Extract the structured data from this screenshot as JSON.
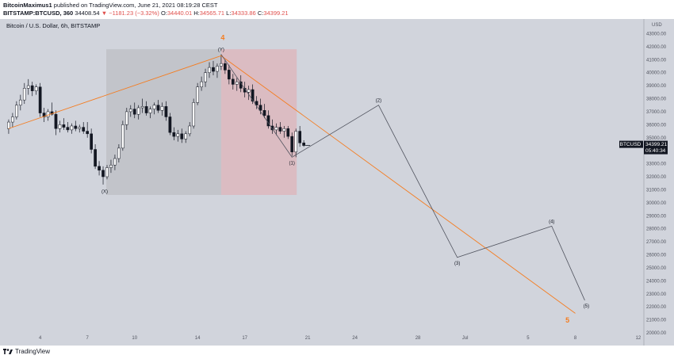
{
  "header": {
    "author": "BitcoinMaximus1",
    "published_text": "published on TradingView.com, June 21, 2021 08:19:28 CEST",
    "symbol": "BITSTAMP:BTCUSD, 360",
    "last": "34408.54",
    "change": "▼ −1181.23 (−3.32%)",
    "o_label": "O:",
    "o_value": "34440.01",
    "h_label": "H:",
    "h_value": "34565.71",
    "l_label": "L:",
    "l_value": "34333.86",
    "c_label": "C:",
    "c_value": "34399.21"
  },
  "chart_title": "Bitcoin / U.S. Dollar, 6h, BITSTAMP",
  "price_tag": {
    "value": "34399.21",
    "countdown": "05:40:34",
    "symbol": "BTCUSD"
  },
  "footer": {
    "brand": "TradingView"
  },
  "colors": {
    "background": "#d1d4dc",
    "up": "#ffffff",
    "down": "#131722",
    "orange": "#f57c1f",
    "grey_box": "#c0c2c8",
    "red_box": "#dcb9bf"
  },
  "chart_data": {
    "type": "candlestick",
    "title": "Bitcoin / U.S. Dollar, 6h, BITSTAMP",
    "y_axis_label": "USD",
    "ylim": [
      20000,
      44000
    ],
    "y_ticks": [
      20000,
      21000,
      22000,
      23000,
      24000,
      25000,
      26000,
      27000,
      28000,
      29000,
      30000,
      31000,
      32000,
      33000,
      34000,
      35000,
      36000,
      37000,
      38000,
      39000,
      40000,
      41000,
      42000,
      43000
    ],
    "y_tick_labels": [
      "20000.00",
      "21000.00",
      "22000.00",
      "23000.00",
      "24000.00",
      "25000.00",
      "26000.00",
      "27000.00",
      "28000.00",
      "29000.00",
      "30000.00",
      "31000.00",
      "32000.00",
      "33000.00",
      "34000.00",
      "35000.00",
      "36000.00",
      "37000.00",
      "38000.00",
      "39000.00",
      "40000.00",
      "41000.00",
      "42000.00",
      "43000.00"
    ],
    "x_tick_labels": [
      {
        "label": "4",
        "day": 4
      },
      {
        "label": "7",
        "day": 7
      },
      {
        "label": "10",
        "day": 10
      },
      {
        "label": "14",
        "day": 14
      },
      {
        "label": "17",
        "day": 17
      },
      {
        "label": "21",
        "day": 21
      },
      {
        "label": "24",
        "day": 24
      },
      {
        "label": "28",
        "day": 28
      },
      {
        "label": "Jul",
        "day": 31
      },
      {
        "label": "5",
        "day": 35
      },
      {
        "label": "8",
        "day": 38
      },
      {
        "label": "12",
        "day": 42
      }
    ],
    "candles_note": "day = calendar day of June 2021 (day 31 = July 1)",
    "candles": [
      {
        "day": 2.0,
        "o": 35700,
        "h": 36400,
        "l": 35300,
        "c": 36200
      },
      {
        "day": 2.25,
        "o": 36200,
        "h": 36900,
        "l": 35800,
        "c": 36600
      },
      {
        "day": 2.5,
        "o": 36600,
        "h": 37800,
        "l": 36400,
        "c": 37500
      },
      {
        "day": 2.75,
        "o": 37500,
        "h": 38300,
        "l": 37100,
        "c": 37900
      },
      {
        "day": 3.0,
        "o": 37900,
        "h": 39200,
        "l": 37600,
        "c": 38800
      },
      {
        "day": 3.25,
        "o": 38800,
        "h": 39500,
        "l": 38300,
        "c": 39000
      },
      {
        "day": 3.5,
        "o": 39000,
        "h": 39300,
        "l": 38200,
        "c": 38600
      },
      {
        "day": 3.75,
        "o": 38600,
        "h": 39100,
        "l": 38300,
        "c": 38900
      },
      {
        "day": 4.0,
        "o": 38900,
        "h": 39200,
        "l": 36600,
        "c": 36900
      },
      {
        "day": 4.25,
        "o": 36900,
        "h": 37300,
        "l": 36200,
        "c": 36600
      },
      {
        "day": 4.5,
        "o": 36600,
        "h": 37200,
        "l": 36300,
        "c": 37000
      },
      {
        "day": 4.75,
        "o": 37000,
        "h": 37700,
        "l": 36700,
        "c": 36800
      },
      {
        "day": 5.0,
        "o": 36800,
        "h": 37100,
        "l": 35200,
        "c": 35700
      },
      {
        "day": 5.25,
        "o": 35700,
        "h": 36300,
        "l": 35400,
        "c": 36000
      },
      {
        "day": 5.5,
        "o": 36000,
        "h": 36500,
        "l": 35600,
        "c": 35800
      },
      {
        "day": 5.75,
        "o": 35800,
        "h": 36200,
        "l": 35400,
        "c": 35600
      },
      {
        "day": 6.0,
        "o": 35600,
        "h": 36100,
        "l": 35300,
        "c": 35900
      },
      {
        "day": 6.25,
        "o": 35900,
        "h": 36300,
        "l": 35500,
        "c": 35700
      },
      {
        "day": 6.5,
        "o": 35700,
        "h": 36000,
        "l": 35400,
        "c": 35800
      },
      {
        "day": 6.75,
        "o": 35800,
        "h": 36200,
        "l": 35300,
        "c": 35500
      },
      {
        "day": 7.0,
        "o": 35500,
        "h": 36200,
        "l": 35000,
        "c": 35300
      },
      {
        "day": 7.25,
        "o": 35300,
        "h": 35700,
        "l": 33800,
        "c": 34100
      },
      {
        "day": 7.5,
        "o": 34100,
        "h": 34500,
        "l": 32600,
        "c": 32800
      },
      {
        "day": 7.75,
        "o": 32800,
        "h": 33200,
        "l": 32100,
        "c": 32500
      },
      {
        "day": 8.0,
        "o": 32500,
        "h": 32800,
        "l": 31400,
        "c": 32000
      },
      {
        "day": 8.25,
        "o": 32000,
        "h": 32900,
        "l": 31800,
        "c": 32700
      },
      {
        "day": 8.5,
        "o": 32700,
        "h": 33300,
        "l": 32300,
        "c": 32900
      },
      {
        "day": 8.75,
        "o": 32900,
        "h": 33700,
        "l": 32500,
        "c": 33400
      },
      {
        "day": 9.0,
        "o": 33400,
        "h": 34500,
        "l": 33100,
        "c": 34200
      },
      {
        "day": 9.25,
        "o": 34200,
        "h": 36300,
        "l": 34000,
        "c": 36000
      },
      {
        "day": 9.5,
        "o": 36000,
        "h": 37300,
        "l": 35600,
        "c": 37000
      },
      {
        "day": 9.75,
        "o": 37000,
        "h": 37500,
        "l": 36600,
        "c": 37200
      },
      {
        "day": 10.0,
        "o": 37200,
        "h": 37700,
        "l": 36500,
        "c": 36800
      },
      {
        "day": 10.25,
        "o": 36800,
        "h": 37500,
        "l": 36400,
        "c": 37300
      },
      {
        "day": 10.5,
        "o": 37300,
        "h": 38000,
        "l": 36900,
        "c": 37400
      },
      {
        "day": 10.75,
        "o": 37400,
        "h": 37800,
        "l": 36700,
        "c": 36900
      },
      {
        "day": 11.0,
        "o": 36900,
        "h": 37400,
        "l": 36500,
        "c": 37200
      },
      {
        "day": 11.25,
        "o": 37200,
        "h": 37700,
        "l": 36800,
        "c": 37500
      },
      {
        "day": 11.5,
        "o": 37500,
        "h": 37900,
        "l": 36900,
        "c": 37100
      },
      {
        "day": 11.75,
        "o": 37100,
        "h": 37700,
        "l": 36700,
        "c": 37400
      },
      {
        "day": 12.0,
        "o": 37400,
        "h": 37800,
        "l": 36300,
        "c": 36600
      },
      {
        "day": 12.25,
        "o": 36600,
        "h": 36900,
        "l": 35200,
        "c": 35400
      },
      {
        "day": 12.5,
        "o": 35400,
        "h": 35800,
        "l": 34800,
        "c": 35100
      },
      {
        "day": 12.75,
        "o": 35100,
        "h": 35600,
        "l": 34700,
        "c": 35300
      },
      {
        "day": 13.0,
        "o": 35300,
        "h": 35700,
        "l": 34600,
        "c": 34900
      },
      {
        "day": 13.25,
        "o": 34900,
        "h": 35500,
        "l": 34600,
        "c": 35300
      },
      {
        "day": 13.5,
        "o": 35300,
        "h": 36200,
        "l": 35100,
        "c": 35900
      },
      {
        "day": 13.75,
        "o": 35900,
        "h": 38000,
        "l": 35700,
        "c": 37700
      },
      {
        "day": 14.0,
        "o": 37700,
        "h": 39200,
        "l": 37500,
        "c": 38900
      },
      {
        "day": 14.25,
        "o": 38900,
        "h": 39700,
        "l": 38600,
        "c": 39300
      },
      {
        "day": 14.5,
        "o": 39300,
        "h": 40300,
        "l": 38900,
        "c": 40000
      },
      {
        "day": 14.75,
        "o": 40000,
        "h": 40800,
        "l": 39600,
        "c": 40400
      },
      {
        "day": 15.0,
        "o": 40400,
        "h": 40900,
        "l": 39800,
        "c": 40100
      },
      {
        "day": 15.25,
        "o": 40100,
        "h": 40700,
        "l": 39600,
        "c": 40500
      },
      {
        "day": 15.5,
        "o": 40500,
        "h": 41400,
        "l": 40200,
        "c": 40700
      },
      {
        "day": 15.75,
        "o": 40700,
        "h": 41000,
        "l": 39900,
        "c": 40200
      },
      {
        "day": 16.0,
        "o": 40200,
        "h": 40600,
        "l": 39100,
        "c": 39500
      },
      {
        "day": 16.25,
        "o": 39500,
        "h": 39900,
        "l": 38700,
        "c": 39100
      },
      {
        "day": 16.5,
        "o": 39100,
        "h": 39600,
        "l": 38600,
        "c": 39300
      },
      {
        "day": 16.75,
        "o": 39300,
        "h": 39800,
        "l": 38500,
        "c": 38800
      },
      {
        "day": 17.0,
        "o": 38800,
        "h": 39300,
        "l": 38100,
        "c": 38500
      },
      {
        "day": 17.25,
        "o": 38500,
        "h": 39000,
        "l": 37900,
        "c": 38700
      },
      {
        "day": 17.5,
        "o": 38700,
        "h": 39100,
        "l": 37600,
        "c": 37800
      },
      {
        "day": 17.75,
        "o": 37800,
        "h": 38200,
        "l": 37200,
        "c": 37500
      },
      {
        "day": 18.0,
        "o": 37500,
        "h": 38000,
        "l": 36800,
        "c": 37100
      },
      {
        "day": 18.25,
        "o": 37100,
        "h": 37600,
        "l": 36500,
        "c": 36700
      },
      {
        "day": 18.5,
        "o": 36700,
        "h": 37100,
        "l": 35700,
        "c": 35900
      },
      {
        "day": 18.75,
        "o": 35900,
        "h": 36400,
        "l": 35300,
        "c": 35600
      },
      {
        "day": 19.0,
        "o": 35600,
        "h": 36100,
        "l": 35200,
        "c": 35800
      },
      {
        "day": 19.25,
        "o": 35800,
        "h": 36200,
        "l": 35300,
        "c": 35500
      },
      {
        "day": 19.5,
        "o": 35500,
        "h": 35900,
        "l": 35000,
        "c": 35700
      },
      {
        "day": 19.75,
        "o": 35700,
        "h": 35900,
        "l": 34900,
        "c": 35100
      },
      {
        "day": 20.0,
        "o": 35100,
        "h": 35400,
        "l": 33600,
        "c": 33900
      },
      {
        "day": 20.25,
        "o": 33900,
        "h": 35700,
        "l": 33500,
        "c": 35500
      },
      {
        "day": 20.5,
        "o": 35500,
        "h": 35900,
        "l": 34300,
        "c": 34600
      },
      {
        "day": 20.75,
        "o": 34600,
        "h": 34800,
        "l": 34300,
        "c": 34400
      }
    ],
    "wave_points": [
      {
        "label": "(X)",
        "day": 8.1,
        "price": 31300
      },
      {
        "label": "(Y)",
        "day": 15.5,
        "price": 41400
      },
      {
        "label": "(1)",
        "day": 20.0,
        "price": 33500
      },
      {
        "label": "(2)",
        "day": 25.5,
        "price": 37500
      },
      {
        "label": "(3)",
        "day": 30.5,
        "price": 25800
      },
      {
        "label": "(4)",
        "day": 36.5,
        "price": 28200
      },
      {
        "label": "(5)",
        "day": 38.6,
        "price": 22500
      }
    ],
    "orange_line": [
      {
        "day": 2.0,
        "price": 35700
      },
      {
        "day": 15.5,
        "price": 41300
      },
      {
        "day": 38.0,
        "price": 21500
      }
    ],
    "orange_labels": [
      {
        "label": "4",
        "day": 15.6,
        "price": 42500
      },
      {
        "label": "5",
        "day": 37.5,
        "price": 20800
      }
    ],
    "boxes": [
      {
        "kind": "grey",
        "day_start": 8.2,
        "day_end": 15.5,
        "price_top": 41800,
        "price_bottom": 30600
      },
      {
        "kind": "red",
        "day_start": 15.5,
        "day_end": 20.3,
        "price_top": 41800,
        "price_bottom": 30600
      }
    ],
    "current_price": 34399.21,
    "legend": "none",
    "grid": false
  }
}
